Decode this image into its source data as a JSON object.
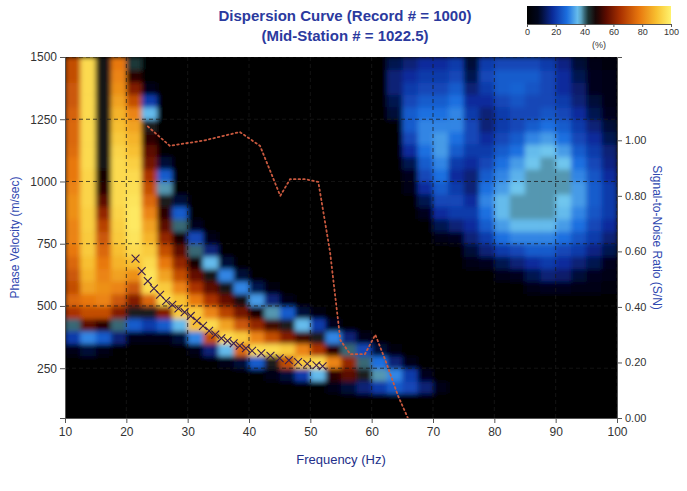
{
  "chart_data": {
    "type": "heatmap",
    "title": "Dispersion Curve (Record # = 1000)",
    "subtitle": "(Mid-Station # = 1022.5)",
    "x_label": "Frequency (Hz)",
    "y_label": "Phase Velocity (m/sec)",
    "y2_label": "Signal-to-Noise Ratio (S/N)",
    "xlim": [
      10,
      100
    ],
    "xticks": [
      10,
      20,
      30,
      40,
      50,
      60,
      70,
      80,
      90,
      100
    ],
    "ylim": [
      50,
      1500
    ],
    "yticks": [
      250,
      500,
      750,
      1000,
      1250,
      1500
    ],
    "y2lim": [
      0,
      1.3
    ],
    "y2ticks": [
      {
        "value": 0,
        "label": "0.00"
      },
      {
        "value": 0.2,
        "label": "0.20"
      },
      {
        "value": 0.4,
        "label": "0.40"
      },
      {
        "value": 0.6,
        "label": "0.60"
      },
      {
        "value": 0.8,
        "label": "0.80"
      },
      {
        "value": 1,
        "label": "1.00"
      }
    ],
    "grid": true,
    "colorbar": {
      "label": "(%)",
      "lim": [
        0,
        100
      ],
      "ticks": [
        0,
        20,
        40,
        60,
        80,
        100
      ]
    },
    "heatmap": {
      "x_bins": [
        10,
        12.5,
        15,
        17.5,
        20,
        22.5,
        25,
        27.5,
        30,
        32.5,
        35,
        37.5,
        40,
        42.5,
        45,
        47.5,
        50,
        52.5,
        55,
        57.5,
        60,
        62.5,
        65,
        67.5,
        70,
        72.5,
        75,
        77.5,
        80,
        82.5,
        85,
        87.5,
        90,
        92.5,
        95,
        97.5,
        100
      ],
      "y_bins": [
        50,
        100,
        150,
        200,
        250,
        300,
        350,
        400,
        450,
        500,
        550,
        600,
        650,
        700,
        750,
        800,
        850,
        900,
        950,
        1000,
        1050,
        1100,
        1150,
        1200,
        1250,
        1300,
        1350,
        1400,
        1450,
        1500
      ],
      "values": [
        [
          0,
          0,
          0,
          0,
          0,
          5,
          20,
          40,
          65,
          75,
          70,
          72,
          75,
          78,
          80,
          80,
          82,
          82,
          80,
          78,
          78,
          76,
          75,
          75,
          74,
          72,
          72,
          70,
          70
        ],
        [
          0,
          0,
          0,
          0,
          0,
          10,
          30,
          55,
          70,
          78,
          85,
          88,
          90,
          92,
          92,
          93,
          93,
          94,
          94,
          94,
          95,
          95,
          95,
          95,
          95,
          95,
          95,
          95,
          95
        ],
        [
          0,
          0,
          0,
          0,
          0,
          5,
          25,
          50,
          70,
          80,
          82,
          80,
          78,
          75,
          72,
          68,
          62,
          55,
          50,
          48,
          46,
          46,
          46,
          46,
          46,
          46,
          46,
          46,
          46
        ],
        [
          0,
          0,
          0,
          0,
          0,
          0,
          15,
          40,
          60,
          72,
          80,
          85,
          88,
          90,
          92,
          93,
          94,
          95,
          95,
          95,
          95,
          94,
          92,
          90,
          88,
          85,
          82,
          80,
          78
        ],
        [
          0,
          0,
          0,
          0,
          0,
          0,
          5,
          25,
          45,
          60,
          72,
          82,
          90,
          95,
          97,
          98,
          98,
          97,
          96,
          95,
          93,
          90,
          88,
          85,
          80,
          70,
          60,
          50,
          42
        ],
        [
          0,
          0,
          0,
          0,
          0,
          0,
          5,
          20,
          45,
          75,
          95,
          97,
          95,
          92,
          88,
          85,
          80,
          75,
          70,
          65,
          58,
          55,
          50,
          45,
          35,
          20,
          5,
          0,
          0
        ],
        [
          0,
          0,
          0,
          0,
          0,
          0,
          5,
          25,
          60,
          95,
          92,
          85,
          78,
          70,
          62,
          55,
          50,
          45,
          38,
          25,
          10,
          0,
          0,
          0,
          0,
          0,
          0,
          0,
          0
        ],
        [
          0,
          0,
          0,
          0,
          0,
          0,
          10,
          35,
          92,
          90,
          80,
          70,
          62,
          55,
          48,
          40,
          25,
          10,
          0,
          0,
          0,
          0,
          0,
          0,
          0,
          0,
          0,
          0,
          0
        ],
        [
          0,
          0,
          0,
          0,
          0,
          5,
          30,
          90,
          92,
          78,
          65,
          56,
          48,
          40,
          22,
          8,
          0,
          0,
          0,
          0,
          0,
          0,
          0,
          0,
          0,
          0,
          0,
          0,
          0
        ],
        [
          0,
          0,
          0,
          0,
          0,
          15,
          70,
          95,
          80,
          65,
          55,
          46,
          35,
          15,
          5,
          0,
          0,
          0,
          0,
          0,
          0,
          0,
          0,
          0,
          0,
          0,
          0,
          0,
          0
        ],
        [
          0,
          0,
          0,
          0,
          5,
          35,
          95,
          85,
          68,
          56,
          46,
          30,
          10,
          0,
          0,
          0,
          0,
          0,
          0,
          0,
          0,
          0,
          0,
          0,
          0,
          0,
          0,
          0,
          0
        ],
        [
          0,
          0,
          0,
          0,
          10,
          75,
          92,
          72,
          58,
          47,
          30,
          10,
          0,
          0,
          0,
          0,
          0,
          0,
          0,
          0,
          0,
          0,
          0,
          0,
          0,
          0,
          0,
          0,
          0
        ],
        [
          0,
          0,
          0,
          0,
          25,
          95,
          80,
          62,
          48,
          32,
          12,
          0,
          0,
          0,
          0,
          0,
          0,
          0,
          0,
          0,
          0,
          0,
          0,
          0,
          0,
          0,
          0,
          0,
          0
        ],
        [
          0,
          0,
          0,
          5,
          45,
          95,
          70,
          52,
          38,
          15,
          3,
          0,
          0,
          0,
          0,
          0,
          0,
          0,
          0,
          0,
          0,
          0,
          0,
          0,
          0,
          0,
          0,
          0,
          0
        ],
        [
          0,
          0,
          0,
          10,
          70,
          92,
          60,
          45,
          25,
          5,
          0,
          0,
          0,
          0,
          0,
          0,
          0,
          0,
          0,
          0,
          0,
          0,
          0,
          0,
          0,
          0,
          0,
          0,
          0
        ],
        [
          0,
          0,
          0,
          20,
          92,
          80,
          52,
          35,
          10,
          0,
          0,
          0,
          0,
          0,
          0,
          0,
          0,
          0,
          0,
          0,
          0,
          0,
          0,
          0,
          0,
          0,
          0,
          0,
          0
        ],
        [
          0,
          0,
          0,
          35,
          95,
          65,
          45,
          20,
          3,
          0,
          0,
          0,
          0,
          0,
          0,
          0,
          0,
          0,
          0,
          0,
          0,
          0,
          0,
          0,
          0,
          0,
          0,
          0,
          0
        ],
        [
          0,
          0,
          5,
          50,
          80,
          50,
          30,
          8,
          0,
          0,
          0,
          0,
          0,
          0,
          0,
          0,
          0,
          0,
          0,
          0,
          0,
          0,
          0,
          0,
          0,
          0,
          0,
          0,
          0
        ],
        [
          0,
          0,
          10,
          55,
          62,
          40,
          15,
          0,
          0,
          0,
          0,
          0,
          0,
          0,
          0,
          0,
          0,
          0,
          0,
          0,
          0,
          0,
          0,
          0,
          0,
          0,
          0,
          0,
          0
        ],
        [
          0,
          0,
          15,
          45,
          40,
          22,
          5,
          0,
          0,
          0,
          0,
          0,
          0,
          0,
          0,
          0,
          0,
          0,
          0,
          0,
          0,
          0,
          0,
          0,
          0,
          0,
          0,
          0,
          0
        ],
        [
          0,
          0,
          20,
          38,
          28,
          10,
          0,
          0,
          0,
          0,
          0,
          0,
          0,
          0,
          0,
          0,
          0,
          0,
          0,
          0,
          0,
          0,
          0,
          0,
          0,
          0,
          0,
          0,
          0
        ],
        [
          0,
          0,
          25,
          30,
          15,
          3,
          0,
          0,
          0,
          0,
          0,
          0,
          0,
          0,
          0,
          0,
          0,
          0,
          0,
          0,
          0,
          0,
          0,
          0,
          10,
          12,
          15,
          15,
          12
        ],
        [
          0,
          0,
          22,
          20,
          5,
          0,
          0,
          0,
          0,
          0,
          0,
          0,
          0,
          0,
          0,
          0,
          0,
          0,
          5,
          8,
          12,
          18,
          22,
          25,
          25,
          22,
          20,
          18,
          15
        ],
        [
          0,
          0,
          15,
          8,
          0,
          0,
          0,
          0,
          0,
          0,
          0,
          0,
          0,
          0,
          0,
          0,
          8,
          12,
          18,
          22,
          25,
          28,
          30,
          30,
          28,
          25,
          22,
          20,
          18
        ],
        [
          0,
          0,
          5,
          0,
          0,
          0,
          0,
          0,
          0,
          0,
          0,
          0,
          0,
          0,
          5,
          12,
          18,
          22,
          25,
          28,
          30,
          32,
          32,
          30,
          28,
          25,
          22,
          20,
          18
        ],
        [
          0,
          0,
          0,
          0,
          0,
          0,
          0,
          0,
          0,
          0,
          0,
          0,
          0,
          0,
          8,
          15,
          20,
          22,
          20,
          18,
          20,
          25,
          28,
          30,
          30,
          28,
          25,
          22,
          20
        ],
        [
          0,
          0,
          0,
          0,
          0,
          0,
          0,
          0,
          0,
          0,
          0,
          0,
          5,
          10,
          15,
          18,
          20,
          18,
          15,
          15,
          18,
          20,
          22,
          22,
          20,
          18,
          15,
          12,
          10
        ],
        [
          0,
          0,
          0,
          0,
          0,
          0,
          0,
          0,
          0,
          0,
          0,
          0,
          8,
          15,
          20,
          25,
          28,
          30,
          28,
          25,
          22,
          20,
          18,
          15,
          15,
          18,
          20,
          22,
          20
        ],
        [
          0,
          0,
          0,
          0,
          0,
          0,
          0,
          0,
          0,
          0,
          0,
          5,
          12,
          20,
          28,
          32,
          35,
          35,
          32,
          30,
          28,
          25,
          22,
          20,
          20,
          22,
          25,
          25,
          22
        ],
        [
          0,
          0,
          0,
          0,
          0,
          0,
          0,
          0,
          0,
          0,
          0,
          8,
          15,
          22,
          30,
          35,
          38,
          38,
          36,
          34,
          32,
          28,
          25,
          22,
          22,
          24,
          26,
          25,
          22
        ],
        [
          0,
          0,
          0,
          0,
          0,
          0,
          0,
          0,
          0,
          0,
          5,
          12,
          18,
          25,
          30,
          35,
          38,
          38,
          38,
          38,
          36,
          35,
          30,
          25,
          22,
          22,
          24,
          25,
          22
        ],
        [
          0,
          0,
          0,
          0,
          0,
          0,
          0,
          0,
          0,
          0,
          8,
          15,
          20,
          25,
          30,
          35,
          38,
          38,
          38,
          38,
          38,
          36,
          32,
          28,
          24,
          22,
          22,
          22,
          20
        ],
        [
          0,
          0,
          0,
          0,
          0,
          0,
          0,
          0,
          0,
          0,
          8,
          14,
          18,
          22,
          28,
          32,
          35,
          36,
          38,
          38,
          36,
          32,
          28,
          25,
          22,
          20,
          18,
          18,
          16
        ],
        [
          0,
          0,
          0,
          0,
          0,
          0,
          0,
          0,
          0,
          0,
          5,
          10,
          15,
          20,
          24,
          28,
          30,
          32,
          32,
          30,
          28,
          25,
          22,
          20,
          18,
          15,
          14,
          12,
          10
        ],
        [
          0,
          0,
          0,
          0,
          0,
          0,
          0,
          0,
          0,
          0,
          5,
          8,
          12,
          16,
          20,
          22,
          24,
          25,
          25,
          24,
          22,
          20,
          18,
          15,
          12,
          10,
          8,
          8,
          6
        ],
        [
          0,
          0,
          0,
          0,
          0,
          0,
          0,
          0,
          0,
          0,
          3,
          5,
          8,
          12,
          15,
          18,
          20,
          20,
          20,
          18,
          16,
          15,
          12,
          10,
          8,
          6,
          5,
          5,
          4
        ]
      ]
    },
    "series": [
      {
        "type": "scatter",
        "marker": "cross",
        "color": "#3a1d4e",
        "x": [
          21.5,
          22.5,
          23.5,
          24.5,
          25.5,
          26.5,
          27.5,
          28.5,
          29.5,
          30.5,
          31.5,
          32.5,
          33.5,
          34.5,
          35.5,
          36.5,
          37.5,
          38.5,
          39.5,
          40.5,
          42,
          43.5,
          45,
          46.5,
          48,
          49.5,
          51,
          52
        ],
        "values": [
          690,
          640,
          600,
          570,
          545,
          520,
          505,
          490,
          475,
          460,
          440,
          420,
          400,
          385,
          370,
          360,
          350,
          340,
          330,
          320,
          310,
          300,
          290,
          282,
          275,
          268,
          262,
          258
        ]
      },
      {
        "type": "line",
        "line_style": "dotted",
        "color": "#c8583e",
        "axis": "y2",
        "x": [
          23.5,
          27.1,
          32.8,
          38.5,
          41.8,
          45.1,
          46.7,
          49.2,
          51.3,
          53.2,
          54.9,
          56.5,
          58.9,
          60.6,
          62.2,
          64.3,
          65.9
        ],
        "values": [
          1.05,
          0.98,
          1,
          1.03,
          0.98,
          0.8,
          0.86,
          0.86,
          0.85,
          0.6,
          0.28,
          0.23,
          0.23,
          0.3,
          0.21,
          0.08,
          0
        ]
      }
    ]
  }
}
